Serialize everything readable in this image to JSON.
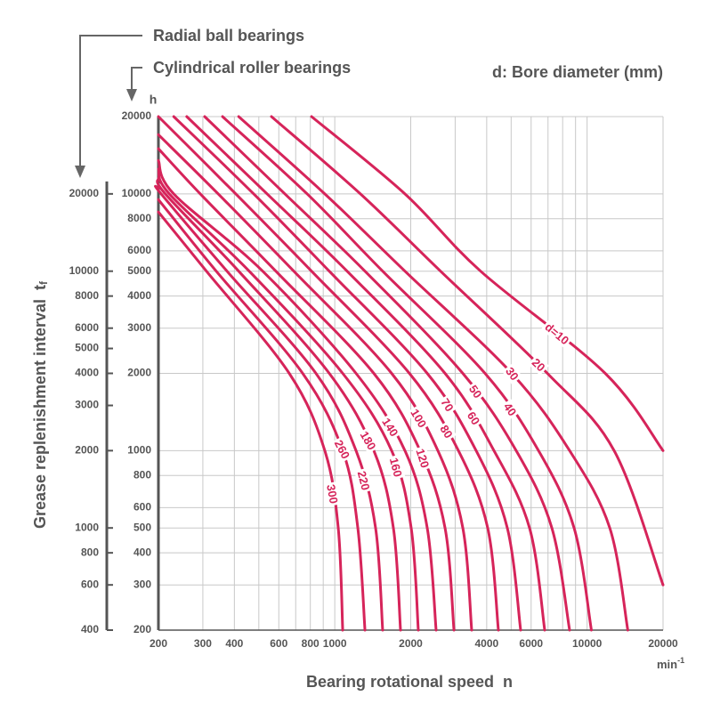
{
  "chart_data": {
    "type": "line",
    "annotations": {
      "radial": "Radial ball bearings",
      "cylindrical": "Cylindrical roller bearings",
      "bore": "d: Bore diameter (mm)"
    },
    "y_unit": "h",
    "ylabel": "Grease replenishment interval",
    "ylabel_symbol": "t",
    "ylabel_sub": "f",
    "xlabel": "Bearing rotational speed",
    "xlabel_symbol": "n",
    "x_unit": "min",
    "x_unit_sup": "-1",
    "xscale": "log",
    "yscale": "log",
    "xlim": [
      200,
      20000
    ],
    "xticks": [
      200,
      300,
      400,
      600,
      800,
      1000,
      2000,
      4000,
      6000,
      10000,
      20000
    ],
    "xgrid": [
      200,
      300,
      400,
      500,
      600,
      700,
      800,
      900,
      1000,
      2000,
      3000,
      4000,
      5000,
      6000,
      7000,
      8000,
      9000,
      10000,
      20000
    ],
    "ylim": [
      200,
      20000
    ],
    "yticks": [
      200,
      300,
      400,
      500,
      600,
      800,
      1000,
      2000,
      3000,
      4000,
      5000,
      6000,
      8000,
      10000,
      20000
    ],
    "y2lim": [
      400,
      40000
    ],
    "y2ticks": [
      400,
      600,
      800,
      1000,
      2000,
      3000,
      4000,
      5000,
      6000,
      8000,
      10000,
      20000
    ],
    "grid": true,
    "color": "#d6245a",
    "series": [
      {
        "name": "d=10",
        "x": [
          809,
          1897,
          3784,
          11800,
          20000
        ],
        "y": [
          20000,
          10000,
          5000,
          2000,
          1000
        ]
      },
      {
        "name": "20",
        "x": [
          561,
          1264,
          2625,
          6960,
          12800,
          20000
        ],
        "y": [
          20000,
          10000,
          5000,
          2000,
          1000,
          300
        ]
      },
      {
        "name": "30",
        "x": [
          416,
          913,
          1897,
          5028,
          8525,
          12300,
          14500
        ],
        "y": [
          20000,
          10000,
          5000,
          2000,
          1000,
          500,
          200
        ]
      },
      {
        "name": "40",
        "x": [
          359,
          777,
          1548,
          3940,
          6420,
          8880,
          10400
        ],
        "y": [
          20000,
          10000,
          5000,
          2000,
          1000,
          500,
          200
        ]
      },
      {
        "name": "50",
        "x": [
          305,
          634,
          1317,
          3217,
          5236,
          7250,
          8525
        ],
        "y": [
          20000,
          10000,
          5000,
          2000,
          1000,
          500,
          200
        ]
      },
      {
        "name": "60",
        "x": [
          259,
          539,
          1119,
          2735,
          4275,
          5914,
          6793
        ],
        "y": [
          20000,
          10000,
          5000,
          2000,
          1000,
          500,
          200
        ]
      },
      {
        "name": "70",
        "x": [
          230,
          477,
          951,
          2325,
          3633,
          4828,
          5454
        ],
        "y": [
          20000,
          10000,
          5000,
          2000,
          1000,
          500,
          200
        ]
      },
      {
        "name": "80",
        "x": [
          200,
          405,
          809,
          1976,
          3090,
          4037,
          4451
        ],
        "y": [
          20000,
          10000,
          5000,
          2000,
          1000,
          500,
          200
        ]
      },
      {
        "name": "100",
        "x": [
          200,
          345,
          688,
          1680,
          2562,
          3217,
          3488
        ],
        "y": [
          17000,
          10000,
          5000,
          2000,
          1000,
          500,
          200
        ]
      },
      {
        "name": "120",
        "x": [
          200,
          293,
          584,
          1428,
          2178,
          2735,
          2967
        ],
        "y": [
          15000,
          10000,
          5000,
          2000,
          1000,
          500,
          200
        ]
      },
      {
        "name": "140",
        "x": [
          200,
          230,
          518,
          1214,
          1897,
          2325,
          2521
        ],
        "y": [
          13500,
          10000,
          5000,
          2000,
          1000,
          500,
          200
        ]
      },
      {
        "name": "160",
        "x": [
          200,
          221,
          458,
          1075,
          1680,
          2008,
          2143
        ],
        "y": [
          12500,
          10000,
          5000,
          2000,
          1000,
          500,
          200
        ]
      },
      {
        "name": "180",
        "x": [
          200,
          213,
          416,
          951,
          1428,
          1707,
          1822
        ],
        "y": [
          11500,
          10000,
          5000,
          2000,
          1000,
          500,
          200
        ]
      },
      {
        "name": "220",
        "x": [
          200,
          205,
          374,
          842,
          1214,
          1451,
          1548
        ],
        "y": [
          10500,
          10000,
          5000,
          2000,
          1000,
          500,
          200
        ]
      },
      {
        "name": "260",
        "x": [
          200,
          339,
          746,
          1075,
          1234,
          1317
        ],
        "y": [
          9500,
          5000,
          2000,
          1000,
          500,
          200
        ]
      },
      {
        "name": "300",
        "x": [
          200,
          310,
          660,
          913,
          1032,
          1075
        ],
        "y": [
          8500,
          5000,
          2000,
          1000,
          500,
          200
        ]
      }
    ]
  }
}
